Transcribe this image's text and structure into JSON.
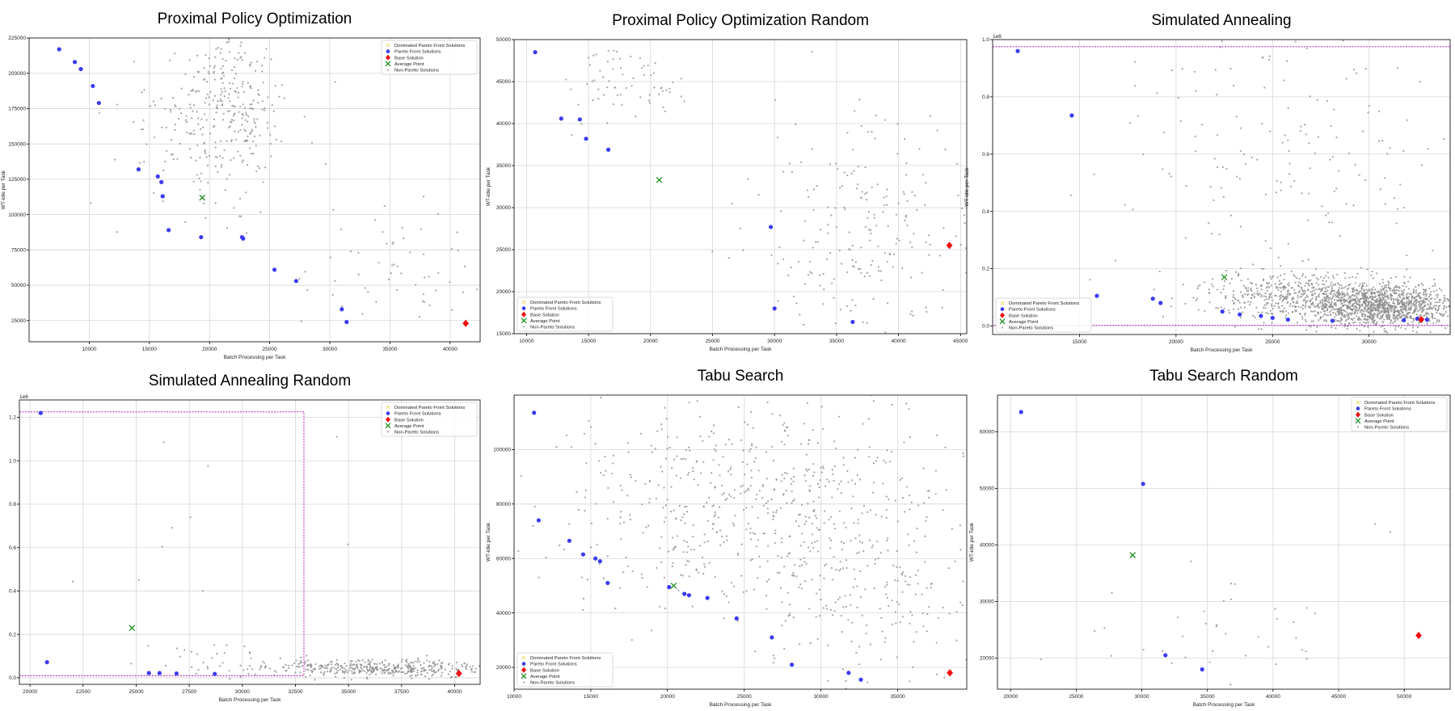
{
  "legend_labels": [
    "Dominated Pareto Front Solutions",
    "Pareto Front Solutions",
    "Base Solution",
    "Average Point",
    "Non-Pareto Solutions"
  ],
  "colors": {
    "pareto": "#3b3bf0",
    "base": "#ee1111",
    "average": "#1e8f1e",
    "non_pareto": "#8c8c8c",
    "dominated": "#e8e070",
    "bound": "#b000b0",
    "grid": "#d6d6d6",
    "axes": "#000000"
  },
  "chart_data": [
    {
      "type": "scatter",
      "title": "Proximal Policy Optimization",
      "xlabel": "Batch Processing per Task",
      "ylabel": "WT-idle per Task",
      "xlim": [
        5000,
        42500
      ],
      "ylim": [
        10000,
        225000
      ],
      "xticks": [
        10000,
        15000,
        20000,
        25000,
        30000,
        35000,
        40000
      ],
      "yticks": [
        25000,
        50000,
        75000,
        100000,
        125000,
        150000,
        175000,
        200000,
        225000
      ],
      "offset_label": "",
      "legend_position": "upper right",
      "bounds": null,
      "pareto": [
        [
          7500,
          217000
        ],
        [
          8800,
          208000
        ],
        [
          9300,
          203000
        ],
        [
          10300,
          191000
        ],
        [
          10800,
          179000
        ],
        [
          14100,
          132000
        ],
        [
          15700,
          127000
        ],
        [
          16000,
          123000
        ],
        [
          16100,
          113000
        ],
        [
          16600,
          89000
        ],
        [
          19300,
          84000
        ],
        [
          22700,
          84000
        ],
        [
          22800,
          83000
        ],
        [
          25400,
          61000
        ],
        [
          27200,
          53000
        ],
        [
          31000,
          33000
        ],
        [
          31400,
          24000
        ]
      ],
      "base": [
        41300,
        23000
      ],
      "average": [
        19400,
        112000
      ],
      "non_pareto_clusters": [
        {
          "count": 140,
          "xmean": 19500,
          "xsd": 3600,
          "ymean": 165000,
          "ysd": 28000
        },
        {
          "count": 170,
          "xmean": 21500,
          "xsd": 1800,
          "ymean": 175000,
          "ysd": 28000
        },
        {
          "count": 50,
          "xmean": 24000,
          "xsd": 3000,
          "ymean": 190000,
          "ysd": 28000
        },
        {
          "count": 60,
          "xmean": 36000,
          "xsd": 3600,
          "ymean": 62000,
          "ysd": 28000
        }
      ]
    },
    {
      "type": "scatter",
      "title": "Proximal Policy Optimization Random",
      "xlabel": "Batch Processing per Task",
      "ylabel": "WT-idle per Task",
      "xlim": [
        9000,
        45500
      ],
      "ylim": [
        15000,
        50000
      ],
      "xticks": [
        10000,
        15000,
        20000,
        25000,
        30000,
        35000,
        40000,
        45000
      ],
      "yticks": [
        15000,
        20000,
        25000,
        30000,
        35000,
        40000,
        45000,
        50000
      ],
      "offset_label": "",
      "legend_position": "lower left",
      "bounds": null,
      "pareto": [
        [
          10700,
          48500
        ],
        [
          12800,
          40600
        ],
        [
          14300,
          40500
        ],
        [
          14800,
          38200
        ],
        [
          16600,
          36900
        ],
        [
          29700,
          27700
        ],
        [
          30000,
          18000
        ],
        [
          36300,
          16400
        ]
      ],
      "base": [
        44100,
        25500
      ],
      "average": [
        20700,
        33300
      ],
      "non_pareto_clusters": [
        {
          "count": 220,
          "xmean": 37500,
          "xsd": 4300,
          "ymean": 28000,
          "ysd": 6500
        },
        {
          "count": 70,
          "xmean": 17500,
          "xsd": 2600,
          "ymean": 45500,
          "ysd": 2800
        }
      ]
    },
    {
      "type": "scatter",
      "title": "Simulated Annealing",
      "xlabel": "Batch Processing per Task",
      "ylabel": "WT-idle per Task",
      "xlim": [
        10500,
        34200
      ],
      "ylim": [
        -30000,
        1000000
      ],
      "xticks": [
        15000,
        20000,
        25000,
        30000
      ],
      "yticks": [
        0,
        200000,
        400000,
        600000,
        800000,
        1000000
      ],
      "ytick_labels": [
        "0.0",
        "0.2",
        "0.4",
        "0.6",
        "0.8",
        "1.0"
      ],
      "offset_label": "1e6",
      "legend_position": "lower left",
      "bounds": {
        "x0": 10500,
        "x1": 34200,
        "y0": 2000,
        "y1": 975000
      },
      "pareto": [
        [
          11800,
          960000
        ],
        [
          14600,
          735000
        ],
        [
          15900,
          105000
        ],
        [
          18800,
          95000
        ],
        [
          19200,
          80000
        ],
        [
          22400,
          50000
        ],
        [
          23300,
          40000
        ],
        [
          24400,
          35000
        ],
        [
          25000,
          28000
        ],
        [
          25800,
          22000
        ],
        [
          28100,
          18000
        ],
        [
          31800,
          20000
        ],
        [
          32500,
          25000
        ],
        [
          33000,
          22000
        ]
      ],
      "base": [
        32700,
        22000
      ],
      "average": [
        22500,
        170000
      ],
      "non_pareto_clusters": [
        {
          "count": 1300,
          "xmean": 30500,
          "xsd": 2200,
          "ymean": 70000,
          "ysd": 38000
        },
        {
          "count": 450,
          "xmean": 26500,
          "xsd": 2800,
          "ymean": 110000,
          "ysd": 40000
        },
        {
          "count": 170,
          "xmean": 25500,
          "xsd": 4500,
          "ymean": 600000,
          "ysd": 260000
        }
      ]
    },
    {
      "type": "scatter",
      "title": "Simulated Annealing Random",
      "xlabel": "Batch Processing per Task",
      "ylabel": "WT-idle per Task",
      "xlim": [
        19500,
        41200
      ],
      "ylim": [
        -30000,
        1280000
      ],
      "xticks": [
        20000,
        22500,
        25000,
        27500,
        30000,
        32500,
        35000,
        37500,
        40000
      ],
      "yticks": [
        0,
        200000,
        400000,
        600000,
        800000,
        1000000,
        1200000
      ],
      "ytick_labels": [
        "0.0",
        "0.2",
        "0.4",
        "0.6",
        "0.8",
        "1.0",
        "1.2"
      ],
      "offset_label": "1e6",
      "legend_position": "upper right",
      "bounds": {
        "x0": 19500,
        "x1": 32900,
        "y0": 10000,
        "y1": 1225000
      },
      "pareto": [
        [
          20500,
          1220000
        ],
        [
          20800,
          72000
        ],
        [
          25600,
          22000
        ],
        [
          26100,
          22000
        ],
        [
          26900,
          20000
        ],
        [
          28700,
          18000
        ]
      ],
      "base": [
        40200,
        20000
      ],
      "average": [
        24800,
        230000
      ],
      "non_pareto_clusters": [
        {
          "count": 420,
          "xmean": 36500,
          "xsd": 2400,
          "ymean": 45000,
          "ysd": 20000
        },
        {
          "count": 40,
          "xmean": 29000,
          "xsd": 1800,
          "ymean": 80000,
          "ysd": 45000
        },
        {
          "count": 12,
          "xmean": 27000,
          "xsd": 4000,
          "ymean": 700000,
          "ysd": 260000
        }
      ]
    },
    {
      "type": "scatter",
      "title": "Tabu Search",
      "xlabel": "Batch Processing per Task",
      "ylabel": "WT-idle per Task",
      "xlim": [
        10000,
        39500
      ],
      "ylim": [
        12000,
        120000
      ],
      "xticks": [
        10000,
        15000,
        20000,
        25000,
        30000,
        35000
      ],
      "yticks": [
        20000,
        40000,
        60000,
        80000,
        100000
      ],
      "offset_label": "",
      "legend_position": "lower left",
      "bounds": null,
      "pareto": [
        [
          11300,
          113500
        ],
        [
          11600,
          74000
        ],
        [
          13600,
          66500
        ],
        [
          14500,
          61500
        ],
        [
          15300,
          60000
        ],
        [
          15600,
          59000
        ],
        [
          16100,
          51000
        ],
        [
          20100,
          49500
        ],
        [
          21100,
          47000
        ],
        [
          21400,
          46500
        ],
        [
          22600,
          45500
        ],
        [
          24500,
          38000
        ],
        [
          26800,
          31000
        ],
        [
          28100,
          21000
        ],
        [
          31800,
          18000
        ],
        [
          32600,
          15500
        ]
      ],
      "base": [
        38400,
        18000
      ],
      "average": [
        20400,
        50000
      ],
      "non_pareto_clusters": [
        {
          "count": 520,
          "xmean": 24500,
          "xsd": 6000,
          "ymean": 82000,
          "ysd": 20000
        },
        {
          "count": 260,
          "xmean": 32500,
          "xsd": 3800,
          "ymean": 55000,
          "ysd": 20000
        }
      ]
    },
    {
      "type": "scatter",
      "title": "Tabu Search Random",
      "xlabel": "Batch Processing per Task",
      "ylabel": "WT-idle per Task",
      "xlim": [
        19000,
        53500
      ],
      "ylim": [
        14500,
        66500
      ],
      "xticks": [
        20000,
        25000,
        30000,
        35000,
        40000,
        45000,
        50000
      ],
      "yticks": [
        20000,
        30000,
        40000,
        50000,
        60000
      ],
      "offset_label": "",
      "legend_position": "upper right",
      "bounds": null,
      "pareto": [
        [
          20800,
          63500
        ],
        [
          30100,
          50800
        ],
        [
          31800,
          20500
        ],
        [
          34600,
          18000
        ]
      ],
      "base": [
        51100,
        24000
      ],
      "average": [
        29300,
        38200
      ],
      "non_pareto_clusters": [
        {
          "count": 34,
          "xmean": 37000,
          "xsd": 4500,
          "ymean": 24000,
          "ysd": 4500
        },
        {
          "count": 6,
          "xmean": 42000,
          "xsd": 8000,
          "ymean": 38000,
          "ysd": 10000
        }
      ]
    }
  ]
}
